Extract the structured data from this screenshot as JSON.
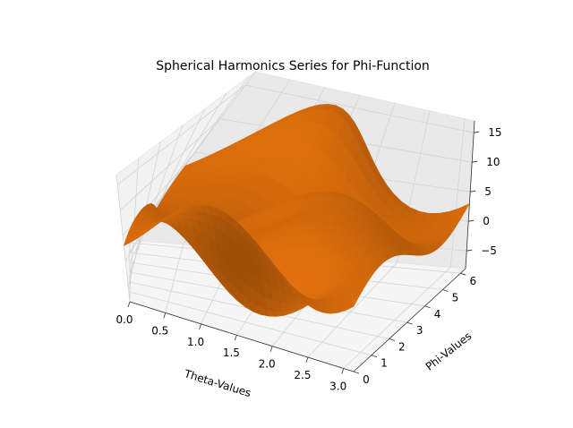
{
  "chart_data": {
    "type": "surface3d",
    "title": "Spherical Harmonics Series for Phi-Function",
    "xlabel": "Theta-Values",
    "ylabel": "Phi-Values",
    "zlabel": "",
    "xlim": [
      0,
      3.14159
    ],
    "ylim": [
      0,
      6.28319
    ],
    "zlim": [
      -8,
      17
    ],
    "x_ticks": [
      0.0,
      0.5,
      1.0,
      1.5,
      2.0,
      2.5,
      3.0
    ],
    "x_tick_labels": [
      "0.0",
      "0.5",
      "1.0",
      "1.5",
      "2.0",
      "2.5",
      "3.0"
    ],
    "y_ticks": [
      0,
      1,
      2,
      3,
      4,
      5,
      6
    ],
    "y_tick_labels": [
      "0",
      "1",
      "2",
      "3",
      "4",
      "5",
      "6"
    ],
    "z_ticks": [
      -5,
      0,
      5,
      10,
      15
    ],
    "z_tick_labels": [
      "−5",
      "0",
      "5",
      "10",
      "15"
    ],
    "surface_color": "#ff7f0e",
    "pane_color": "#f2f2f2",
    "grid": true
  }
}
